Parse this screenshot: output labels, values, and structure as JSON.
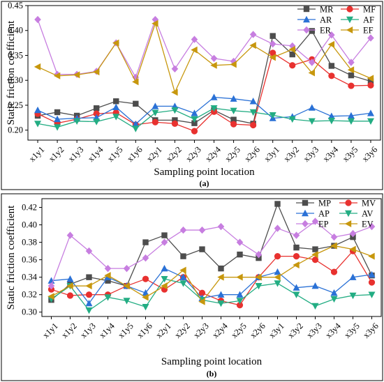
{
  "chart_data": [
    {
      "type": "line",
      "panel_label": "(a)",
      "xlabel": "Sampling point location",
      "ylabel": "Static friction coefficient",
      "ylim": [
        0.18,
        0.45
      ],
      "yticks": [
        "0.20",
        "0.25",
        "0.30",
        "0.35",
        "0.40",
        "0.45"
      ],
      "categories": [
        "x1y1",
        "x1y2",
        "x1y3",
        "x1y4",
        "x1y5",
        "x1y6",
        "x2y1",
        "x2y2",
        "x2y3",
        "x2y4",
        "x2y5",
        "x2y6",
        "x3y1",
        "x3y2",
        "x3y3",
        "x3y4",
        "x3y5",
        "x3y6"
      ],
      "legend_position": "top-right",
      "grid": false,
      "series": [
        {
          "name": "MR",
          "color": "#4d4d4d",
          "marker": "square",
          "values": [
            0.229,
            0.236,
            0.229,
            0.244,
            0.258,
            0.253,
            0.22,
            0.22,
            0.214,
            0.24,
            0.221,
            0.213,
            0.389,
            0.352,
            0.399,
            0.329,
            0.31,
            0.298
          ]
        },
        {
          "name": "MF",
          "color": "#e8312f",
          "marker": "circle",
          "values": [
            0.233,
            0.214,
            0.222,
            0.233,
            0.235,
            0.211,
            0.216,
            0.213,
            0.198,
            0.237,
            0.212,
            0.21,
            0.355,
            0.33,
            0.342,
            0.309,
            0.289,
            0.29
          ]
        },
        {
          "name": "AR",
          "color": "#2a71d6",
          "marker": "triangle",
          "values": [
            0.24,
            0.222,
            0.224,
            0.225,
            0.246,
            0.212,
            0.248,
            0.248,
            0.234,
            0.266,
            0.263,
            0.258,
            0.224,
            0.227,
            0.245,
            0.228,
            0.229,
            0.234
          ]
        },
        {
          "name": "AF",
          "color": "#23ad83",
          "marker": "tri-down",
          "values": [
            0.213,
            0.206,
            0.218,
            0.217,
            0.227,
            0.203,
            0.235,
            0.24,
            0.222,
            0.244,
            0.239,
            0.236,
            0.23,
            0.222,
            0.218,
            0.219,
            0.218,
            0.218
          ]
        },
        {
          "name": "ER",
          "color": "#c77ee0",
          "marker": "diamond",
          "values": [
            0.422,
            0.312,
            0.312,
            0.318,
            0.375,
            0.306,
            0.422,
            0.323,
            0.382,
            0.344,
            0.338,
            0.392,
            0.373,
            0.369,
            0.336,
            0.391,
            0.336,
            0.385
          ]
        },
        {
          "name": "EF",
          "color": "#c7970d",
          "marker": "tri-left",
          "values": [
            0.327,
            0.309,
            0.311,
            0.317,
            0.375,
            0.297,
            0.414,
            0.276,
            0.361,
            0.33,
            0.332,
            0.37,
            0.346,
            0.362,
            0.315,
            0.372,
            0.321,
            0.304
          ]
        }
      ]
    },
    {
      "type": "line",
      "panel_label": "(b)",
      "xlabel": "Sampling point location",
      "ylabel": "Static friction coefficient",
      "ylim": [
        0.295,
        0.43
      ],
      "yticks": [
        "0.30",
        "0.32",
        "0.34",
        "0.36",
        "0.38",
        "0.40",
        "0.42"
      ],
      "categories": [
        "x1y1",
        "x1y2",
        "x1y3",
        "x1y4",
        "x1y5",
        "x1y6",
        "x2y1",
        "x2y2",
        "x2y3",
        "x2y4",
        "x2y5",
        "x2y6",
        "x3y1",
        "x3y2",
        "x3y3",
        "x3y4",
        "x3y5",
        "x3y6"
      ],
      "legend_position": "top-right",
      "grid": false,
      "series": [
        {
          "name": "MP",
          "color": "#4d4d4d",
          "marker": "square",
          "values": [
            0.314,
            0.332,
            0.34,
            0.336,
            0.33,
            0.38,
            0.388,
            0.364,
            0.372,
            0.35,
            0.366,
            0.362,
            0.424,
            0.374,
            0.372,
            0.376,
            0.386,
            0.342
          ]
        },
        {
          "name": "MV",
          "color": "#e8312f",
          "marker": "circle",
          "values": [
            0.326,
            0.319,
            0.32,
            0.32,
            0.33,
            0.338,
            0.326,
            0.34,
            0.322,
            0.313,
            0.308,
            0.34,
            0.364,
            0.364,
            0.36,
            0.346,
            0.37,
            0.334
          ]
        },
        {
          "name": "AP",
          "color": "#2a71d6",
          "marker": "triangle",
          "values": [
            0.336,
            0.338,
            0.31,
            0.34,
            0.33,
            0.322,
            0.35,
            0.34,
            0.316,
            0.32,
            0.32,
            0.34,
            0.346,
            0.328,
            0.33,
            0.322,
            0.34,
            0.343
          ]
        },
        {
          "name": "AV",
          "color": "#23ad83",
          "marker": "tri-down",
          "values": [
            0.315,
            0.33,
            0.302,
            0.317,
            0.313,
            0.306,
            0.338,
            0.333,
            0.314,
            0.31,
            0.313,
            0.33,
            0.333,
            0.32,
            0.307,
            0.315,
            0.319,
            0.32
          ]
        },
        {
          "name": "EP",
          "color": "#c77ee0",
          "marker": "diamond",
          "values": [
            0.33,
            0.388,
            0.37,
            0.35,
            0.35,
            0.362,
            0.38,
            0.394,
            0.394,
            0.398,
            0.38,
            0.366,
            0.396,
            0.388,
            0.404,
            0.386,
            0.39,
            0.398
          ]
        },
        {
          "name": "EV",
          "color": "#c7970d",
          "marker": "tri-left",
          "values": [
            0.318,
            0.33,
            0.33,
            0.342,
            0.33,
            0.317,
            0.33,
            0.348,
            0.312,
            0.34,
            0.34,
            0.34,
            0.34,
            0.354,
            0.366,
            0.376,
            0.372,
            0.364
          ]
        }
      ]
    }
  ]
}
